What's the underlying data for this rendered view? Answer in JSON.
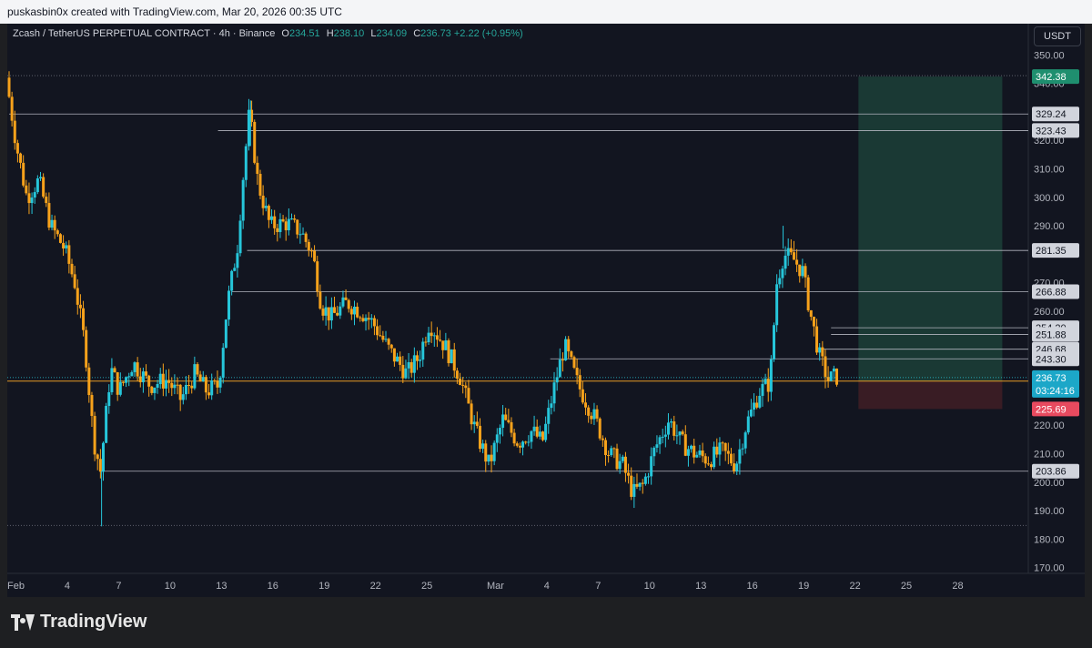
{
  "header": {
    "watermark_text": "puskasbin0x created with TradingView.com, Mar 20, 2026 00:35 UTC"
  },
  "legend": {
    "symbol": "Zcash / TetherUS PERPETUAL CONTRACT · 4h · Binance",
    "o_label": "O",
    "o_value": "234.51",
    "h_label": "H",
    "h_value": "238.10",
    "l_label": "L",
    "l_value": "234.09",
    "c_label": "C",
    "c_value": "236.73",
    "change": "+2.22 (+0.95%)"
  },
  "toolbar": {
    "currency": "USDT"
  },
  "footer": {
    "logo_text": "TradingView"
  },
  "colors": {
    "up": "#26c6da",
    "down": "#f7a21b",
    "tp_zone": "#1b3b36",
    "sl_zone": "#3c1c25",
    "tp_label": "#1f8f6f",
    "sl_label": "#e84a5f",
    "current_label": "#1ca7c8"
  },
  "chart_data": {
    "type": "candlestick",
    "title": "Zcash / TetherUS PERPETUAL CONTRACT · 4h · Binance",
    "ylim": [
      168,
      352
    ],
    "y_ticks": [
      "350.00",
      "340.00",
      "320.00",
      "310.00",
      "300.00",
      "290.00",
      "270.00",
      "260.00",
      "220.00",
      "210.00",
      "200.00",
      "190.00",
      "180.00",
      "170.00"
    ],
    "x_ticks": [
      {
        "label": "Feb",
        "day": 1
      },
      {
        "label": "4",
        "day": 4
      },
      {
        "label": "7",
        "day": 7
      },
      {
        "label": "10",
        "day": 10
      },
      {
        "label": "13",
        "day": 13
      },
      {
        "label": "16",
        "day": 16
      },
      {
        "label": "19",
        "day": 19
      },
      {
        "label": "22",
        "day": 22
      },
      {
        "label": "25",
        "day": 25
      },
      {
        "label": "Mar",
        "day": 29
      },
      {
        "label": "4",
        "day": 32
      },
      {
        "label": "7",
        "day": 35
      },
      {
        "label": "10",
        "day": 38
      },
      {
        "label": "13",
        "day": 41
      },
      {
        "label": "16",
        "day": 44
      },
      {
        "label": "19",
        "day": 47
      },
      {
        "label": "22",
        "day": 50
      },
      {
        "label": "25",
        "day": 53
      },
      {
        "label": "28",
        "day": 56
      }
    ],
    "x_range_days": [
      0.6,
      59.8
    ],
    "price_path": [
      [
        0.6,
        342
      ],
      [
        1.2,
        318
      ],
      [
        1.8,
        300
      ],
      [
        2.5,
        306
      ],
      [
        3.2,
        290
      ],
      [
        4.0,
        282
      ],
      [
        4.6,
        270
      ],
      [
        5.2,
        248
      ],
      [
        5.7,
        215
      ],
      [
        6.1,
        204
      ],
      [
        6.7,
        240
      ],
      [
        7.2,
        232
      ],
      [
        8.0,
        242
      ],
      [
        9.0,
        234
      ],
      [
        10.0,
        236
      ],
      [
        10.8,
        229
      ],
      [
        11.6,
        238
      ],
      [
        12.3,
        232
      ],
      [
        13.0,
        234
      ],
      [
        13.5,
        262
      ],
      [
        14.1,
        283
      ],
      [
        14.5,
        312
      ],
      [
        14.8,
        330
      ],
      [
        15.3,
        305
      ],
      [
        16.0,
        290
      ],
      [
        17.0,
        291
      ],
      [
        17.8,
        288
      ],
      [
        18.5,
        280
      ],
      [
        19.0,
        262
      ],
      [
        19.6,
        258
      ],
      [
        20.5,
        263
      ],
      [
        21.3,
        260
      ],
      [
        22.0,
        256
      ],
      [
        23.0,
        246
      ],
      [
        24.0,
        238
      ],
      [
        24.7,
        244
      ],
      [
        25.3,
        256
      ],
      [
        26.2,
        248
      ],
      [
        27.1,
        237
      ],
      [
        28.0,
        218
      ],
      [
        28.8,
        206
      ],
      [
        29.6,
        222
      ],
      [
        30.5,
        214
      ],
      [
        31.3,
        218
      ],
      [
        31.9,
        214
      ],
      [
        32.7,
        236
      ],
      [
        33.2,
        248
      ],
      [
        34.0,
        234
      ],
      [
        35.0,
        222
      ],
      [
        35.8,
        210
      ],
      [
        36.6,
        206
      ],
      [
        37.2,
        196
      ],
      [
        37.8,
        199
      ],
      [
        38.5,
        212
      ],
      [
        39.3,
        222
      ],
      [
        40.0,
        214
      ],
      [
        40.8,
        210
      ],
      [
        41.6,
        208
      ],
      [
        42.4,
        211
      ],
      [
        43.2,
        206
      ],
      [
        43.8,
        220
      ],
      [
        44.6,
        232
      ],
      [
        45.2,
        235
      ],
      [
        45.6,
        270
      ],
      [
        46.0,
        280
      ],
      [
        46.6,
        278
      ],
      [
        47.1,
        274
      ],
      [
        47.6,
        258
      ],
      [
        48.1,
        244
      ],
      [
        48.6,
        236
      ],
      [
        49.0,
        237
      ]
    ],
    "levels": [
      {
        "value": 342.38,
        "label": "342.38",
        "kind": "tp"
      },
      {
        "value": 329.24,
        "label": "329.24",
        "kind": "line"
      },
      {
        "value": 323.43,
        "label": "323.43",
        "kind": "line"
      },
      {
        "value": 281.35,
        "label": "281.35",
        "kind": "line"
      },
      {
        "value": 266.88,
        "label": "266.88",
        "kind": "line"
      },
      {
        "value": 254.2,
        "label": "254.20",
        "kind": "line"
      },
      {
        "value": 251.88,
        "label": "251.88",
        "kind": "line"
      },
      {
        "value": 246.68,
        "label": "246.68",
        "kind": "line"
      },
      {
        "value": 243.3,
        "label": "243.30",
        "kind": "line"
      },
      {
        "value": 225.69,
        "label": "225.69",
        "kind": "sl"
      },
      {
        "value": 203.86,
        "label": "203.86",
        "kind": "line"
      }
    ],
    "current_price": {
      "value": 236.73,
      "label": "236.73",
      "countdown": "03:24:16"
    },
    "entry_price": 235.5,
    "position": {
      "start_day": 50.2,
      "end_day": 58.6,
      "entry": 235.5,
      "target": 342.38,
      "stop": 225.69
    },
    "dotted_levels": [
      342.38,
      184.5
    ]
  }
}
